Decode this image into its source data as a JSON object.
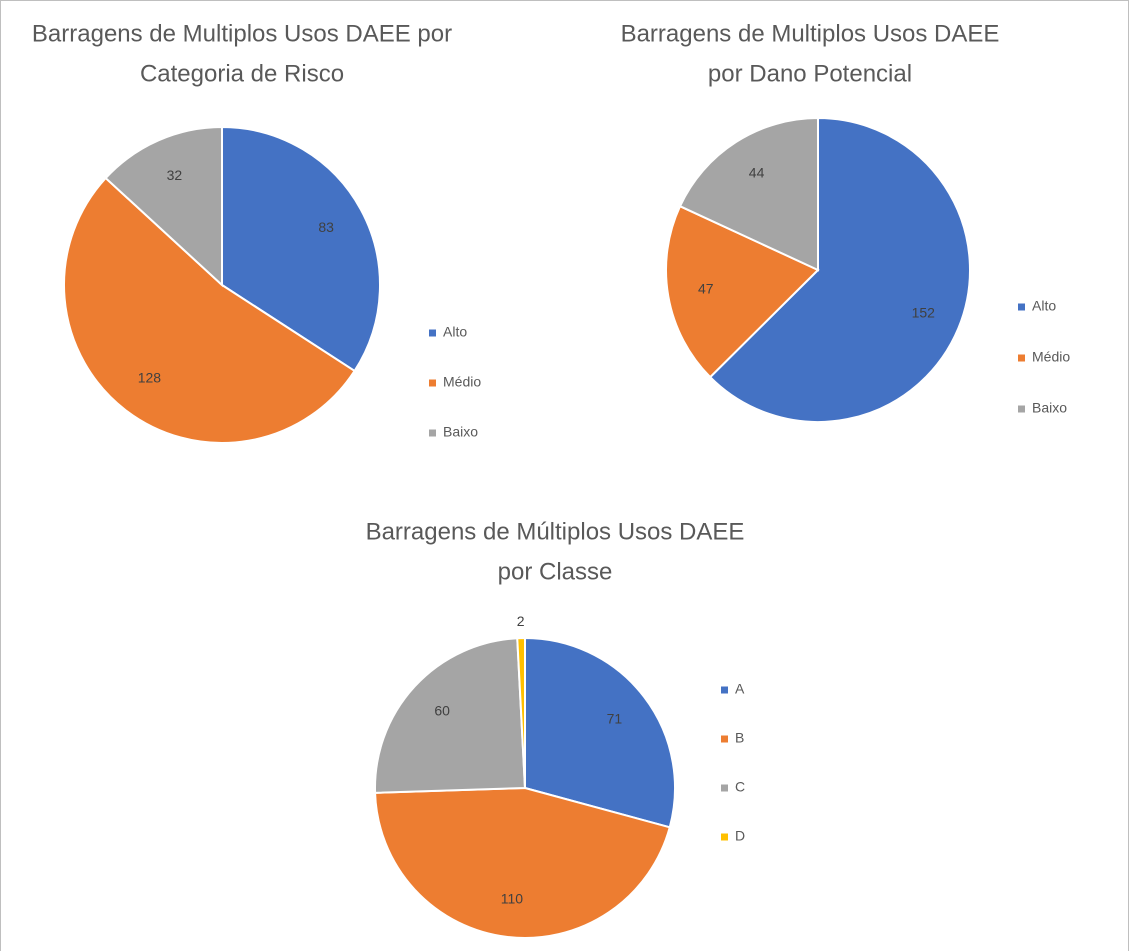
{
  "chart_data": [
    {
      "type": "pie",
      "title": [
        "Barragens de Multiplos Usos DAEE por",
        "Categoria de Risco"
      ],
      "categories": [
        "Alto",
        "Médio",
        "Baixo"
      ],
      "values": [
        83,
        128,
        32
      ],
      "colors": [
        "#4472c4",
        "#ed7d31",
        "#a5a5a5"
      ],
      "legend": "right"
    },
    {
      "type": "pie",
      "title": [
        "Barragens de Multiplos Usos DAEE",
        "por Dano Potencial"
      ],
      "categories": [
        "Alto",
        "Médio",
        "Baixo"
      ],
      "values": [
        152,
        47,
        44
      ],
      "colors": [
        "#4472c4",
        "#ed7d31",
        "#a5a5a5"
      ],
      "legend": "right"
    },
    {
      "type": "pie",
      "title": [
        "Barragens de Múltiplos Usos DAEE",
        "por Classe"
      ],
      "categories": [
        "A",
        "B",
        "C",
        "D"
      ],
      "values": [
        71,
        110,
        60,
        2
      ],
      "colors": [
        "#4472c4",
        "#ed7d31",
        "#a5a5a5",
        "#ffc000"
      ],
      "legend": "right"
    }
  ]
}
